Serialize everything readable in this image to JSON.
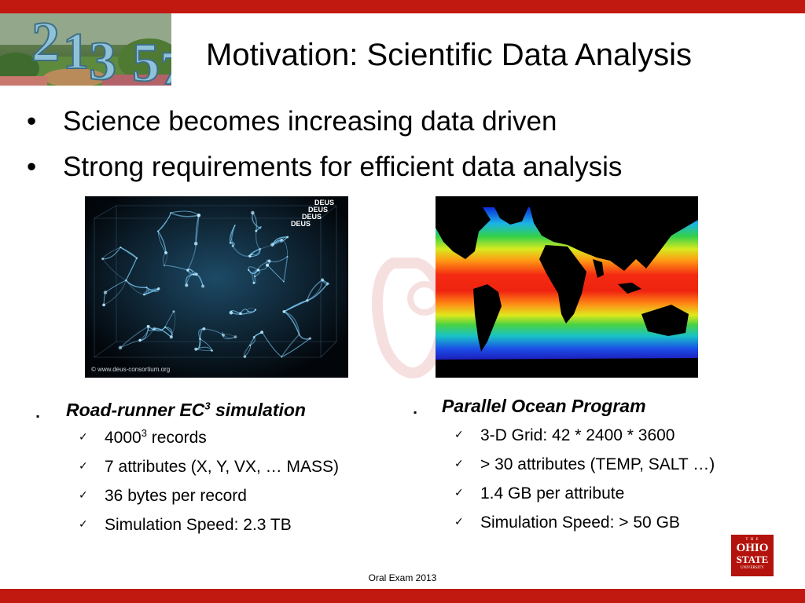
{
  "slide": {
    "title": "Motivation: Scientific Data Analysis",
    "bullets": [
      "Science becomes increasing data driven",
      "Strong requirements for efficient data analysis"
    ]
  },
  "deus_image": {
    "brand_lines": [
      "DEUS",
      "DEUS",
      "DEUS",
      "DEUS"
    ],
    "credit": "© www.deus-consortium.org"
  },
  "left_list": {
    "heading_main": "Road-runner EC",
    "heading_sup": "3",
    "heading_tail": " simulation",
    "items": [
      {
        "main": "4000",
        "sup": "3",
        "tail": " records"
      },
      {
        "main": "7 attributes (X, Y, VX, … MASS)",
        "sup": "",
        "tail": ""
      },
      {
        "main": "36 bytes per record",
        "sup": "",
        "tail": ""
      },
      {
        "main": "Simulation Speed:  2.3 TB",
        "sup": "",
        "tail": ""
      }
    ]
  },
  "right_list": {
    "heading": "Parallel Ocean Program",
    "items": [
      "3-D Grid: 42 * 2400 * 3600",
      "> 30 attributes (TEMP, SALT …)",
      "1.4 GB per attribute",
      "Simulation Speed:  > 50 GB"
    ]
  },
  "footer": "Oral Exam 2013",
  "logo": {
    "the": "T H E",
    "ohio": "OHIO",
    "state": "STATE",
    "university": "UNIVERSITY"
  },
  "colors": {
    "accent_bar": "#c1180f",
    "logo_red": "#b3130c"
  },
  "icons": {
    "bullet": "square-bullet-icon",
    "check": "checkmark-icon"
  }
}
